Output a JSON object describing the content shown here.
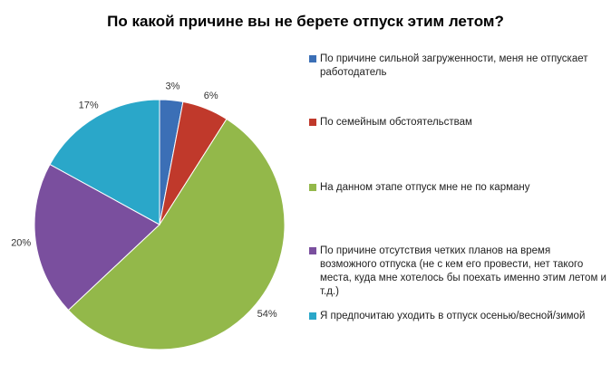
{
  "chart_data": {
    "type": "pie",
    "title": "По какой причине вы не берете отпуск этим летом?",
    "slices": [
      {
        "label": "По причине сильной загруженности,  меня не отпускает работодатель",
        "value": 3,
        "display": "3%",
        "color": "#3b6fb6"
      },
      {
        "label": "По семейным  обстоятельствам",
        "value": 6,
        "display": "6%",
        "color": "#c0392b"
      },
      {
        "label": "На данном  этапе отпуск мне не по карману",
        "value": 54,
        "display": "54%",
        "color": "#93b84a"
      },
      {
        "label": "По причине отсутствия четких планов на время возможного  отпуска (не с кем его провести,  нет такого места, куда мне хотелось бы поехать именно  этим летом  и т.д.)",
        "value": 20,
        "display": "20%",
        "color": "#7a4f9e"
      },
      {
        "label": "Я предпочитаю  уходить в отпуск осенью/весной/зимой",
        "value": 17,
        "display": "17%",
        "color": "#2aa7c9"
      }
    ],
    "legend_position": "right"
  }
}
